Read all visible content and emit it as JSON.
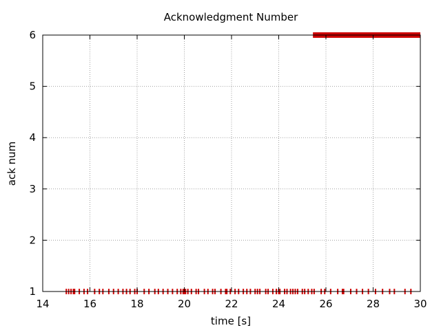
{
  "chart_data": {
    "type": "scatter",
    "title": "Acknowledgment Number",
    "xlabel": "time [s]",
    "ylabel": "ack num",
    "xlim": [
      14,
      30
    ],
    "ylim": [
      1,
      6
    ],
    "x_ticks": [
      "14",
      "16",
      "18",
      "20",
      "22",
      "24",
      "26",
      "28",
      "30"
    ],
    "y_ticks": [
      "1",
      "2",
      "3",
      "4",
      "5",
      "6"
    ],
    "grid": true,
    "legend": "none",
    "marker": "vertical-tick",
    "color": "#cc0000",
    "series": [
      {
        "y": 1,
        "x": [
          15.0,
          15.1,
          15.2,
          15.3,
          15.35,
          15.55,
          15.75,
          15.9,
          16.2,
          16.4,
          16.55,
          16.8,
          17.0,
          17.2,
          17.4,
          17.55,
          17.7,
          17.9,
          18.0,
          18.3,
          18.5,
          18.75,
          18.9,
          19.1,
          19.3,
          19.5,
          19.7,
          19.85,
          19.95,
          20.0,
          20.05,
          20.15,
          20.3,
          20.5,
          20.6,
          20.85,
          21.0,
          21.2,
          21.3,
          21.55,
          21.75,
          21.8,
          21.95,
          22.15,
          22.3,
          22.5,
          22.65,
          22.8,
          23.0,
          23.1,
          23.2,
          23.45,
          23.55,
          23.75,
          23.9,
          24.0,
          24.05,
          24.25,
          24.35,
          24.5,
          24.6,
          24.7,
          24.8,
          25.0,
          25.1,
          25.25,
          25.4,
          25.5,
          25.8,
          25.95,
          26.2,
          26.5,
          26.7,
          26.75,
          27.05,
          27.3,
          27.55,
          27.8,
          28.1,
          28.4,
          28.7,
          28.9,
          29.35,
          29.6
        ]
      },
      {
        "y": 6,
        "x_range": [
          25.45,
          30.0
        ]
      }
    ]
  }
}
